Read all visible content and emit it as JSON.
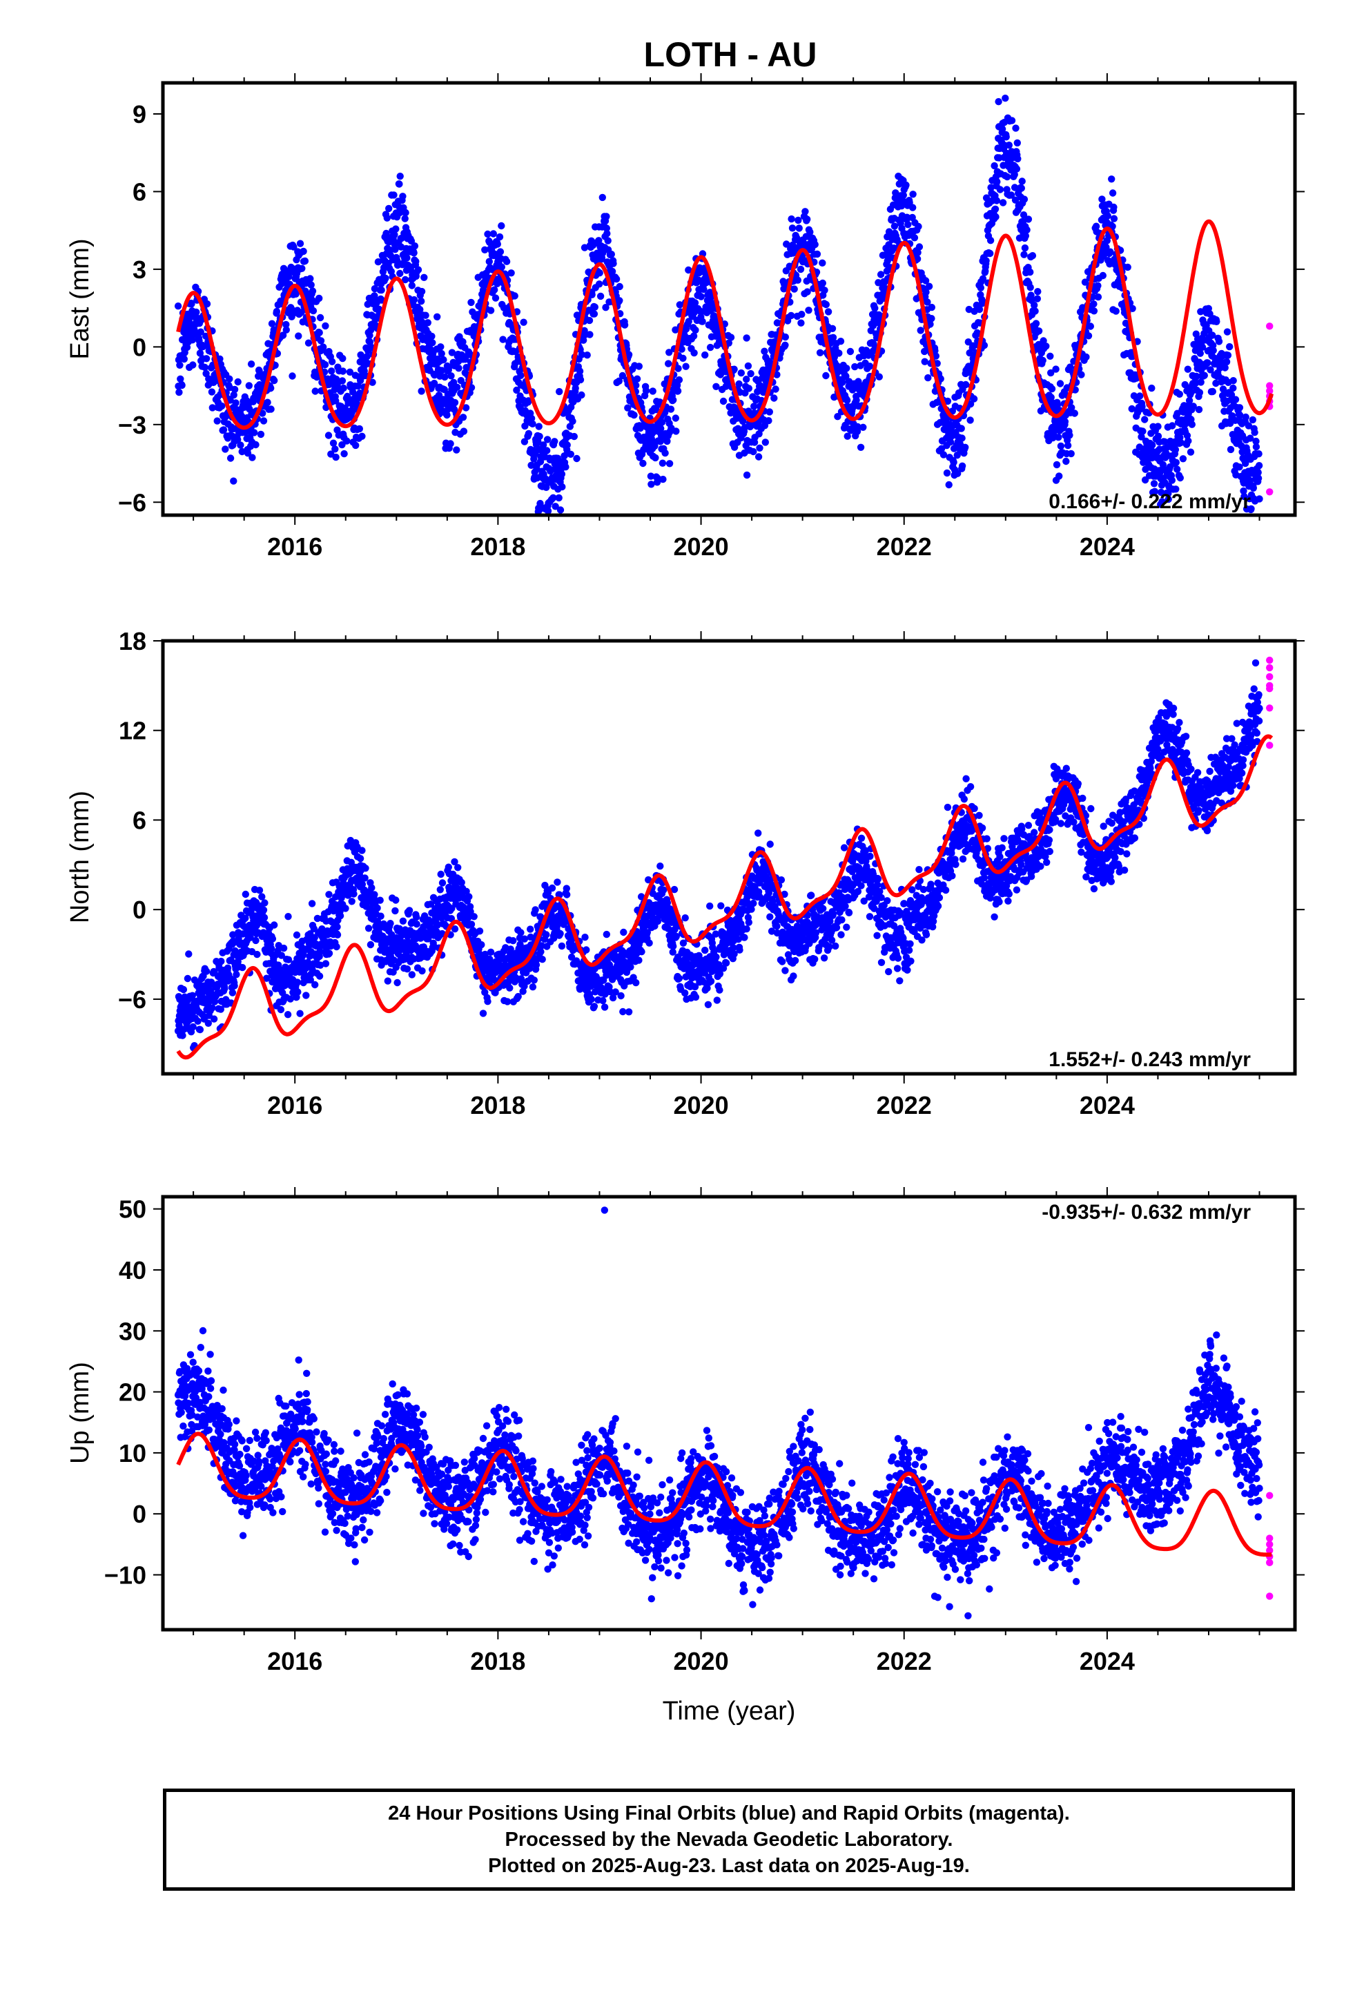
{
  "title": "LOTH - AU",
  "xlabel": "Time (year)",
  "caption": [
    "24 Hour Positions Using Final Orbits (blue) and Rapid Orbits (magenta).",
    "Processed by the Nevada Geodetic Laboratory.",
    "Plotted on 2025-Aug-23. Last data on 2025-Aug-19."
  ],
  "colors": {
    "final": "#0000ff",
    "rapid": "#ff00ff",
    "model": "#ff0000",
    "axes": "#000000"
  },
  "chart_data": [
    {
      "type": "scatter",
      "name": "east",
      "ylabel": "East (mm)",
      "rate_text": "0.166+/- 0.222 mm/yr",
      "xlim": [
        2014.7,
        2025.85
      ],
      "ylim": [
        -6.5,
        10.2
      ],
      "xticks": [
        2016,
        2018,
        2020,
        2022,
        2024
      ],
      "xtick_labels": [
        "2016",
        "2018",
        "2020",
        "2022",
        "2024"
      ],
      "yticks": [
        -6,
        -3,
        0,
        3,
        6,
        9
      ],
      "ytick_labels": [
        "−6",
        "−3",
        "0",
        "3",
        "6",
        "9"
      ],
      "model": {
        "offset": 0.0,
        "trend": 0.166,
        "annual": 2.6,
        "annual_growth": 0.11,
        "peak_phase": 0.0,
        "semiannual": 0.3,
        "semi_phase": 0.0,
        "x_start": 2014.85,
        "x_end": 2025.62
      },
      "final_points": {
        "x_start": 2014.85,
        "x_end": 2025.5,
        "noise": 0.9,
        "residual_knots": [
          [
            2014.85,
            -1.5
          ],
          [
            2015.5,
            0.2
          ],
          [
            2016.5,
            0.5
          ],
          [
            2017.0,
            2.0
          ],
          [
            2018.0,
            0.3
          ],
          [
            2018.5,
            -2.5
          ],
          [
            2019.0,
            0.5
          ],
          [
            2020.0,
            -1.5
          ],
          [
            2020.6,
            0.5
          ],
          [
            2021.0,
            0.0
          ],
          [
            2022.0,
            1.5
          ],
          [
            2022.5,
            -1.0
          ],
          [
            2023.0,
            4.0
          ],
          [
            2023.5,
            -0.5
          ],
          [
            2024.0,
            0.0
          ],
          [
            2024.5,
            -2.0
          ],
          [
            2025.0,
            -5.0
          ],
          [
            2025.5,
            -2.0
          ]
        ]
      },
      "rapid_points": {
        "x": [
          2025.6,
          2025.6,
          2025.6,
          2025.6,
          2025.6,
          2025.6,
          2025.6
        ],
        "y": [
          0.8,
          -1.5,
          -1.7,
          -1.9,
          -2.1,
          -2.3,
          -5.6
        ]
      }
    },
    {
      "type": "scatter",
      "name": "north",
      "ylabel": "North (mm)",
      "rate_text": "1.552+/- 0.243 mm/yr",
      "xlim": [
        2014.7,
        2025.85
      ],
      "ylim": [
        -11,
        18
      ],
      "xticks": [
        2016,
        2018,
        2020,
        2022,
        2024
      ],
      "xtick_labels": [
        "2016",
        "2018",
        "2020",
        "2022",
        "2024"
      ],
      "yticks": [
        -6,
        0,
        6,
        12,
        18
      ],
      "ytick_labels": [
        "−6",
        "0",
        "6",
        "12",
        "18"
      ],
      "model": {
        "offset": 0.0,
        "trend": 1.552,
        "annual": 2.2,
        "annual_growth": 0.0,
        "peak_phase": 0.55,
        "semiannual": 0.8,
        "semi_phase": 0.6,
        "x_start": 2014.85,
        "x_end": 2025.62
      },
      "final_points": {
        "x_start": 2014.85,
        "x_end": 2025.5,
        "noise": 1.1,
        "residual_knots": [
          [
            2014.85,
            3.0
          ],
          [
            2015.5,
            3.0
          ],
          [
            2016.0,
            3.5
          ],
          [
            2016.5,
            5.0
          ],
          [
            2017.0,
            4.0
          ],
          [
            2018.0,
            0.5
          ],
          [
            2019.0,
            -1.5
          ],
          [
            2020.0,
            -2.0
          ],
          [
            2021.0,
            -1.5
          ],
          [
            2022.0,
            -3.0
          ],
          [
            2023.0,
            0.0
          ],
          [
            2024.0,
            -1.0
          ],
          [
            2024.5,
            2.0
          ],
          [
            2025.0,
            1.5
          ],
          [
            2025.5,
            3.0
          ]
        ]
      },
      "rapid_points": {
        "x": [
          2025.6,
          2025.6,
          2025.6,
          2025.6,
          2025.6,
          2025.6,
          2025.6
        ],
        "y": [
          16.7,
          16.2,
          15.6,
          15.0,
          14.8,
          13.5,
          11.0
        ]
      }
    },
    {
      "type": "scatter",
      "name": "up",
      "ylabel": "Up (mm)",
      "rate_text": "-0.935+/- 0.632 mm/yr",
      "xlim": [
        2014.7,
        2025.85
      ],
      "ylim": [
        -19,
        52
      ],
      "xticks": [
        2016,
        2018,
        2020,
        2022,
        2024
      ],
      "xtick_labels": [
        "2016",
        "2018",
        "2020",
        "2022",
        "2024"
      ],
      "yticks": [
        -10,
        0,
        10,
        20,
        30,
        40,
        50
      ],
      "ytick_labels": [
        "−10",
        "0",
        "10",
        "20",
        "30",
        "40",
        "50"
      ],
      "model": {
        "offset": 2.5,
        "trend": -0.935,
        "annual": 5.0,
        "annual_growth": 0.0,
        "peak_phase": 0.05,
        "semiannual": 1.0,
        "semi_phase": 0.05,
        "x_start": 2014.85,
        "x_end": 2025.62
      },
      "final_points": {
        "x_start": 2014.85,
        "x_end": 2025.5,
        "noise": 3.6,
        "residual_knots": [
          [
            2014.85,
            8.0
          ],
          [
            2015.5,
            4.0
          ],
          [
            2016.5,
            1.0
          ],
          [
            2017.0,
            3.0
          ],
          [
            2018.0,
            0.0
          ],
          [
            2020.0,
            -2.0
          ],
          [
            2020.5,
            -4.0
          ],
          [
            2021.0,
            0.0
          ],
          [
            2022.0,
            -2.0
          ],
          [
            2023.0,
            0.0
          ],
          [
            2024.0,
            4.0
          ],
          [
            2024.5,
            10.0
          ],
          [
            2025.0,
            17.0
          ],
          [
            2025.5,
            14.0
          ]
        ]
      },
      "rapid_points": {
        "x": [
          2025.6,
          2025.6,
          2025.6,
          2025.6,
          2025.6,
          2025.6,
          2025.6
        ],
        "y": [
          3.0,
          -4.0,
          -5.0,
          -6.0,
          -7.0,
          -8.0,
          -13.5
        ]
      },
      "outliers": [
        {
          "x": 2019.05,
          "y": 49.8
        }
      ]
    }
  ]
}
